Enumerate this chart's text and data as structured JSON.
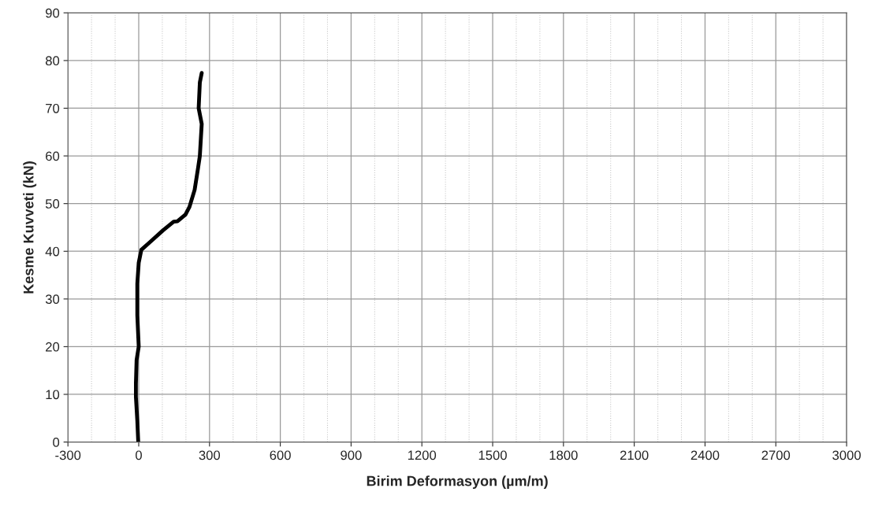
{
  "chart_data": {
    "type": "line",
    "xlabel": "Birim Deformasyon (µm/m)",
    "ylabel": "Kesme Kuvveti (kN)",
    "xlim": [
      -300,
      3000
    ],
    "xticks": [
      -300,
      0,
      300,
      600,
      900,
      1200,
      1500,
      1800,
      2100,
      2400,
      2700,
      3000
    ],
    "ylim": [
      0,
      90
    ],
    "yticks": [
      0,
      10,
      20,
      30,
      40,
      50,
      60,
      70,
      80,
      90
    ],
    "grid": true,
    "marker": "none",
    "line_style": "solid",
    "series": [
      {
        "color": "#000000",
        "x": [
          -2,
          -6,
          -12,
          -12,
          -9,
          0,
          -6,
          -6,
          0,
          11,
          47,
          103,
          148,
          164,
          198,
          215,
          237,
          251,
          259,
          267,
          254,
          259,
          267
        ],
        "values": [
          0,
          4.5,
          9.5,
          12.2,
          17.2,
          20,
          26.6,
          33.2,
          37.6,
          40.3,
          41.9,
          44.4,
          46.2,
          46.3,
          47.7,
          49.3,
          52.9,
          57.3,
          60,
          66.7,
          70,
          75.4,
          77.4
        ]
      }
    ]
  }
}
